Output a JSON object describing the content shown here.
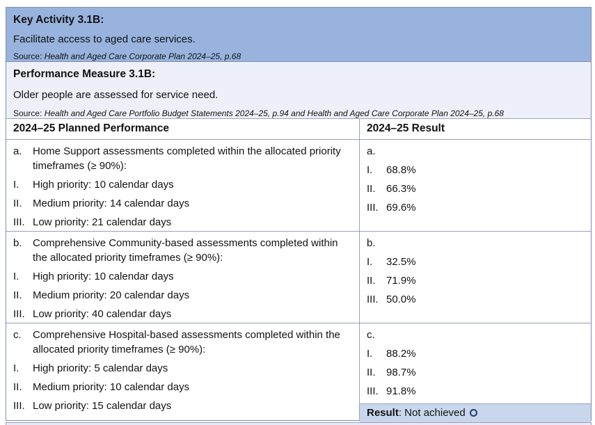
{
  "key_activity": {
    "title": "Key Activity 3.1B:",
    "description": "Facilitate access to aged care services.",
    "source_prefix": "Source: ",
    "source": "Health and Aged Care Corporate Plan 2024–25, p.68"
  },
  "performance_measure": {
    "title": "Performance Measure 3.1B:",
    "description": "Older people are assessed for service need.",
    "source_prefix": "Source: ",
    "source": "Health and Aged Care Portfolio Budget Statements 2024–25, p.94 and Health and Aged Care Corporate Plan 2024–25, p.68"
  },
  "table": {
    "headers": {
      "planned": "2024–25 Planned Performance",
      "result": "2024–25 Result"
    },
    "rows": [
      {
        "planned": {
          "label": "a.",
          "text": "Home Support assessments completed within the allocated priority timeframes (≥ 90%):",
          "items": [
            {
              "label": "I.",
              "text": "High priority: 10 calendar days"
            },
            {
              "label": "II.",
              "text": "Medium priority: 14 calendar days"
            },
            {
              "label": "III.",
              "text": "Low priority: 21 calendar days"
            }
          ]
        },
        "result": {
          "label": "a.",
          "items": [
            {
              "label": "I.",
              "value": "68.8%"
            },
            {
              "label": "II.",
              "value": "66.3%"
            },
            {
              "label": "III.",
              "value": "69.6%"
            }
          ]
        }
      },
      {
        "planned": {
          "label": "b.",
          "text": "Comprehensive Community-based assessments completed within the allocated priority timeframes (≥ 90%):",
          "items": [
            {
              "label": "I.",
              "text": "High priority: 10 calendar days"
            },
            {
              "label": "II.",
              "text": "Medium priority: 20 calendar days"
            },
            {
              "label": "III.",
              "text": "Low priority: 40 calendar days"
            }
          ]
        },
        "result": {
          "label": "b.",
          "items": [
            {
              "label": "I.",
              "value": "32.5%"
            },
            {
              "label": "II.",
              "value": "71.9%"
            },
            {
              "label": "III.",
              "value": "50.0%"
            }
          ]
        }
      },
      {
        "planned": {
          "label": "c.",
          "text": "Comprehensive Hospital-based assessments completed within the allocated priority timeframes (≥ 90%):",
          "items": [
            {
              "label": "I.",
              "text": "High priority: 5 calendar days"
            },
            {
              "label": "II.",
              "text": "Medium priority: 10 calendar days"
            },
            {
              "label": "III.",
              "text": "Low priority: 15 calendar days"
            }
          ]
        },
        "result": {
          "label": "c.",
          "items": [
            {
              "label": "I.",
              "value": "88.2%"
            },
            {
              "label": "II.",
              "value": "98.7%"
            },
            {
              "label": "III.",
              "value": "91.8%"
            }
          ]
        }
      }
    ],
    "result_row": {
      "label": "Result",
      "value": ": Not achieved",
      "status_icon": "circle-outline",
      "status_color": "#1f3c6e"
    }
  },
  "colors": {
    "key_activity_bg": "#98b3de",
    "performance_measure_bg": "#edf0f8",
    "result_row_bg": "#c9d7ed",
    "border": "#97a1bd"
  }
}
